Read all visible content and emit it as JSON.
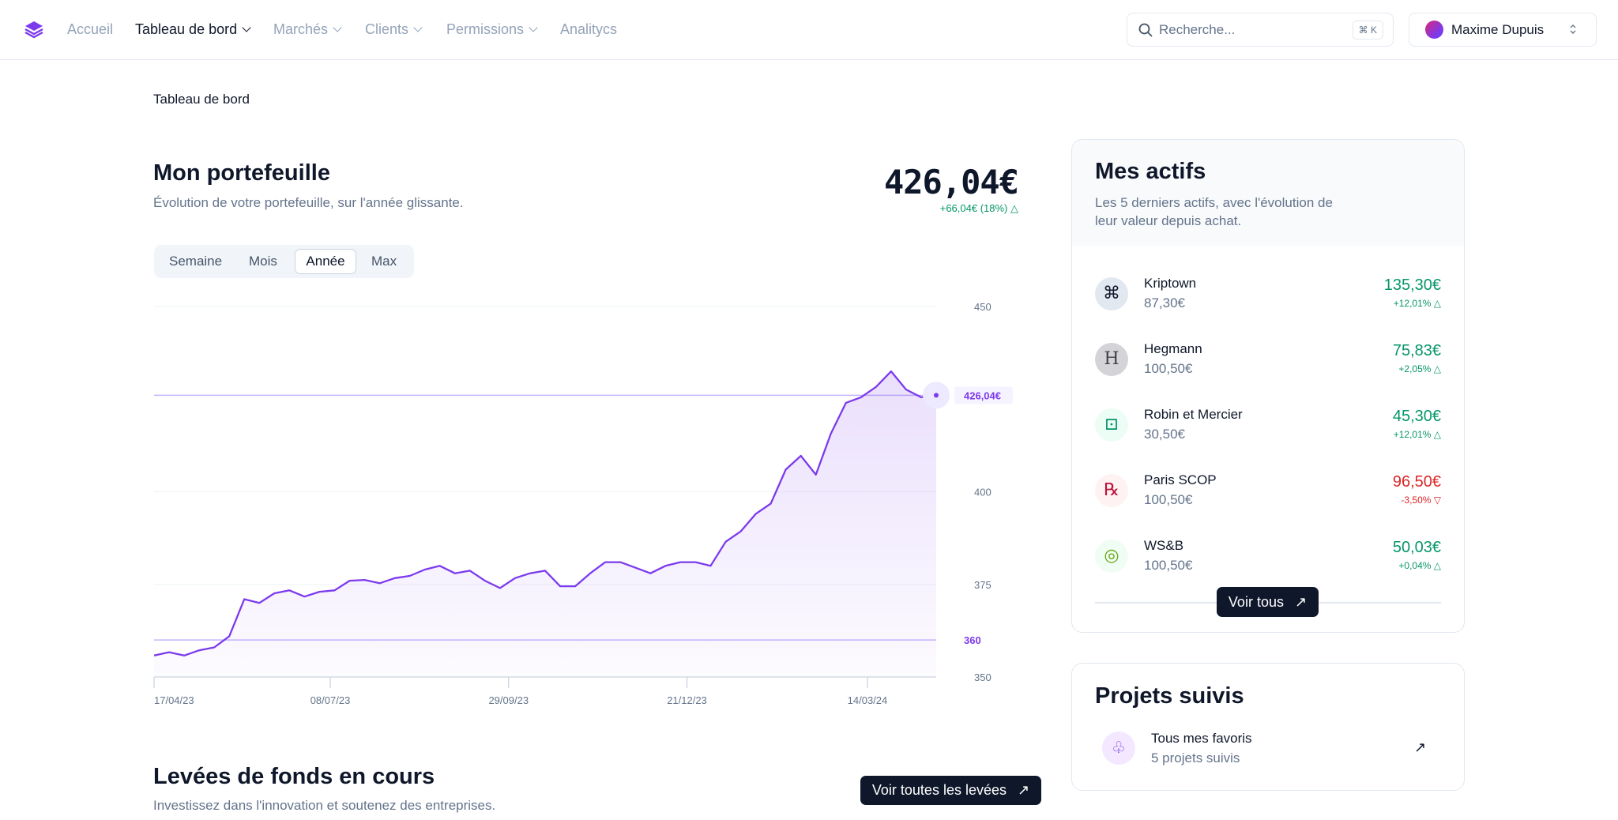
{
  "nav": {
    "items": [
      "Accueil",
      "Tableau de bord",
      "Marchés",
      "Clients",
      "Permissions",
      "Analitycs"
    ]
  },
  "search": {
    "placeholder": "Recherche...",
    "shortcut": "⌘ K"
  },
  "user": {
    "name": "Maxime Dupuis"
  },
  "breadcrumb": "Tableau de bord",
  "portfolio": {
    "title": "Mon portefeuille",
    "subtitle": "Évolution de votre portefeuille, sur l'année glissante.",
    "value": "426,04€",
    "change": "+66,04€ (18%)",
    "periods": [
      "Semaine",
      "Mois",
      "Année",
      "Max"
    ]
  },
  "chart_data": {
    "type": "line",
    "color": "#7c3aed",
    "x": [
      "17/04/23",
      "24/04/23",
      "01/05/23",
      "08/05/23",
      "15/05/23",
      "22/05/23",
      "29/05/23",
      "05/06/23",
      "12/06/23",
      "19/06/23",
      "26/06/23",
      "03/07/23",
      "10/07/23",
      "17/07/23",
      "24/07/23",
      "31/07/23",
      "07/08/23",
      "14/08/23",
      "21/08/23",
      "28/08/23",
      "04/09/23",
      "11/09/23",
      "18/09/23",
      "25/09/23",
      "02/10/23",
      "09/10/23",
      "16/10/23",
      "23/10/23",
      "30/10/23",
      "06/11/23",
      "13/11/23",
      "20/11/23",
      "27/11/23",
      "04/12/23",
      "11/12/23",
      "18/12/23",
      "25/12/23",
      "01/01/24",
      "08/01/24",
      "15/01/24",
      "22/01/24",
      "29/01/24",
      "05/02/24",
      "12/02/24",
      "19/02/24",
      "26/02/24",
      "04/03/24",
      "11/03/24",
      "18/03/24",
      "25/03/24",
      "01/04/24",
      "08/04/24",
      "15/04/24"
    ],
    "values": [
      355.8,
      356.7,
      355.8,
      357.2,
      358,
      361,
      371,
      370,
      372.6,
      373.4,
      371.7,
      373,
      373.4,
      376,
      376.2,
      375.3,
      376.7,
      377.3,
      379,
      380,
      378,
      378.7,
      376,
      374,
      376.7,
      378,
      378.7,
      374.5,
      374.5,
      378,
      381,
      381,
      379.5,
      378,
      380,
      381,
      381,
      380,
      386.5,
      389.3,
      394,
      396.8,
      406,
      409.7,
      404.6,
      415.7,
      424,
      425.5,
      428.3,
      432.5,
      427.6,
      425.5,
      426.04
    ],
    "xlim": [
      "17/04/23",
      "15/04/24"
    ],
    "xticks": [
      "17/04/23",
      "08/07/23",
      "29/09/23",
      "21/12/23",
      "14/03/24"
    ],
    "ylim": [
      350,
      450
    ],
    "yticks": [
      350,
      375,
      400,
      450
    ],
    "reference_lines": [
      {
        "value": 426.04,
        "label": "426,04€"
      },
      {
        "value": 360,
        "label": "360"
      }
    ]
  },
  "assets": {
    "title": "Mes actifs",
    "subtitle": "Les 5 derniers actifs, avec l'évolution de leur valeur depuis achat.",
    "items": [
      {
        "name": "Kriptown",
        "price": "87,30€",
        "value": "135,30€",
        "change": "+12,01%",
        "color": "#059669"
      },
      {
        "name": "Hegmann",
        "price": "100,50€",
        "value": "75,83€",
        "change": "+2,05%",
        "color": "#059669"
      },
      {
        "name": "Robin et Mercier",
        "price": "30,50€",
        "value": "45,30€",
        "change": "+12,01%",
        "color": "#059669"
      },
      {
        "name": "Paris SCOP",
        "price": "100,50€",
        "value": "96,50€",
        "change": "-3,50%",
        "color": "#dc2626"
      },
      {
        "name": "WS&B",
        "price": "100,50€",
        "value": "50,03€",
        "change": "+0,04%",
        "color": "#059669"
      }
    ],
    "button": "Voir tous"
  },
  "projects": {
    "title": "Projets suivis",
    "item": {
      "title": "Tous mes favoris",
      "subtitle": "5 projets suivis"
    }
  },
  "fundraising": {
    "title": "Levées de fonds en cours",
    "subtitle": "Investissez dans l'innovation et soutenez des entreprises.",
    "button": "Voir toutes les levées"
  }
}
